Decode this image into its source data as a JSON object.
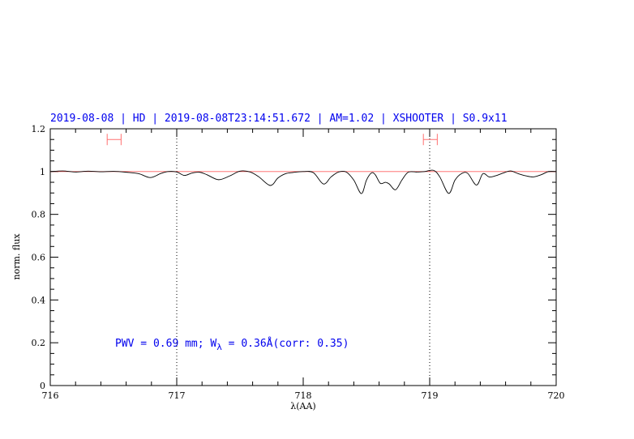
{
  "chart_data": {
    "type": "line",
    "title": "2019-08-08 | HD | 2019-08-08T23:14:51.672 | AM=1.02 | XSHOOTER | S0.9x11",
    "xlabel": "λ(AA)",
    "ylabel": "norm. flux",
    "xlim": [
      716,
      720
    ],
    "ylim": [
      0,
      1.2
    ],
    "xticks": [
      716,
      717,
      718,
      719,
      720
    ],
    "xtick_labels": [
      "716",
      "717",
      "718",
      "719",
      "720"
    ],
    "yticks": [
      0,
      0.2,
      0.4,
      0.6,
      0.8,
      1,
      1.2
    ],
    "ytick_labels": [
      "0",
      "0.2",
      "0.4",
      "0.6",
      "0.8",
      "1",
      "1.2"
    ],
    "grid": false,
    "reference_line": {
      "y": 1.0,
      "color": "#ff6060"
    },
    "vertical_dotted_lines": [
      717,
      719
    ],
    "range_markers": [
      {
        "x0": 716.45,
        "x1": 716.56,
        "y": 1.15,
        "color": "#ff7070"
      },
      {
        "x0": 718.95,
        "x1": 719.06,
        "y": 1.15,
        "color": "#ff7070"
      }
    ],
    "annotation": {
      "prefix": "PWV = 0.69 mm; W",
      "subscript": "λ",
      "suffix": " = 0.36Å(corr: 0.35)"
    },
    "series": [
      {
        "color": "#000000",
        "x": [
          716.0,
          716.1,
          716.2,
          716.3,
          716.4,
          716.5,
          716.6,
          716.7,
          716.79,
          716.87,
          716.93,
          717.0,
          717.06,
          717.12,
          717.18,
          717.24,
          717.33,
          717.42,
          717.5,
          717.58,
          717.65,
          717.74,
          717.8,
          717.86,
          717.92,
          718.0,
          718.08,
          718.16,
          718.22,
          718.28,
          718.34,
          718.4,
          718.46,
          718.5,
          718.54,
          718.57,
          718.61,
          718.65,
          718.68,
          718.73,
          718.78,
          718.83,
          718.9,
          718.96,
          719.03,
          719.08,
          719.15,
          719.2,
          719.25,
          719.3,
          719.37,
          719.42,
          719.47,
          719.52,
          719.58,
          719.64,
          719.7,
          719.76,
          719.82,
          719.88,
          719.94,
          720.0
        ],
        "y": [
          1.0,
          1.003,
          0.998,
          1.002,
          0.999,
          1.001,
          0.997,
          0.99,
          0.972,
          0.99,
          1.0,
          0.998,
          0.982,
          0.993,
          0.997,
          0.985,
          0.962,
          0.98,
          1.002,
          0.998,
          0.975,
          0.935,
          0.97,
          0.99,
          0.996,
          1.0,
          0.995,
          0.942,
          0.975,
          0.998,
          0.998,
          0.96,
          0.897,
          0.96,
          0.994,
          0.985,
          0.945,
          0.95,
          0.942,
          0.915,
          0.96,
          0.997,
          0.998,
          1.0,
          1.006,
          0.975,
          0.898,
          0.96,
          0.99,
          0.992,
          0.937,
          0.99,
          0.975,
          0.98,
          0.993,
          1.003,
          0.99,
          0.98,
          0.975,
          0.985,
          1.0,
          1.0
        ]
      }
    ]
  }
}
